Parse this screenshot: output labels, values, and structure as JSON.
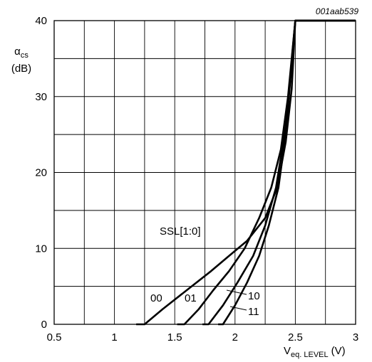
{
  "chart_data": {
    "type": "line",
    "figure_code": "001aab539",
    "ylabel": {
      "symbol": "α",
      "subscript": "cs",
      "unit": "(dB)"
    },
    "xlabel": {
      "main": "V",
      "subscript": "eq. LEVEL",
      "unit": "(V)"
    },
    "xlim": [
      0.5,
      3
    ],
    "ylim": [
      0,
      40
    ],
    "x_ticks": [
      0.5,
      1,
      1.5,
      2,
      2.5,
      3
    ],
    "x_tick_labels": [
      "0.5",
      "1",
      "1.5",
      "2",
      "2.5",
      "3"
    ],
    "y_ticks": [
      0,
      10,
      20,
      30,
      40
    ],
    "y_tick_labels": [
      "0",
      "10",
      "20",
      "30",
      "40"
    ],
    "grid": true,
    "legend_title": "SSL[1:0]",
    "series": [
      {
        "name": "00",
        "points": [
          [
            1.18,
            0
          ],
          [
            1.25,
            0
          ],
          [
            1.4,
            2
          ],
          [
            1.6,
            4.5
          ],
          [
            1.8,
            7
          ],
          [
            1.95,
            9
          ],
          [
            2.1,
            11
          ],
          [
            2.25,
            14
          ],
          [
            2.35,
            18
          ],
          [
            2.42,
            24
          ],
          [
            2.47,
            31
          ],
          [
            2.5,
            40
          ],
          [
            3,
            40
          ]
        ]
      },
      {
        "name": "01",
        "points": [
          [
            1.52,
            0
          ],
          [
            1.58,
            0
          ],
          [
            1.7,
            2
          ],
          [
            1.82,
            4.5
          ],
          [
            1.95,
            7
          ],
          [
            2.08,
            10
          ],
          [
            2.2,
            14
          ],
          [
            2.3,
            18
          ],
          [
            2.38,
            23
          ],
          [
            2.44,
            30
          ],
          [
            2.5,
            40
          ],
          [
            3,
            40
          ]
        ]
      },
      {
        "name": "10",
        "points": [
          [
            1.73,
            0
          ],
          [
            1.78,
            0
          ],
          [
            1.9,
            2.5
          ],
          [
            2.02,
            5.5
          ],
          [
            2.15,
            9
          ],
          [
            2.25,
            13
          ],
          [
            2.34,
            18
          ],
          [
            2.42,
            26
          ],
          [
            2.5,
            40
          ],
          [
            3,
            40
          ]
        ]
      },
      {
        "name": "11",
        "points": [
          [
            1.86,
            0
          ],
          [
            1.9,
            0
          ],
          [
            2.0,
            2.5
          ],
          [
            2.1,
            5.5
          ],
          [
            2.2,
            9
          ],
          [
            2.28,
            13
          ],
          [
            2.36,
            18
          ],
          [
            2.42,
            25
          ],
          [
            2.5,
            40
          ],
          [
            3,
            40
          ]
        ]
      }
    ]
  }
}
